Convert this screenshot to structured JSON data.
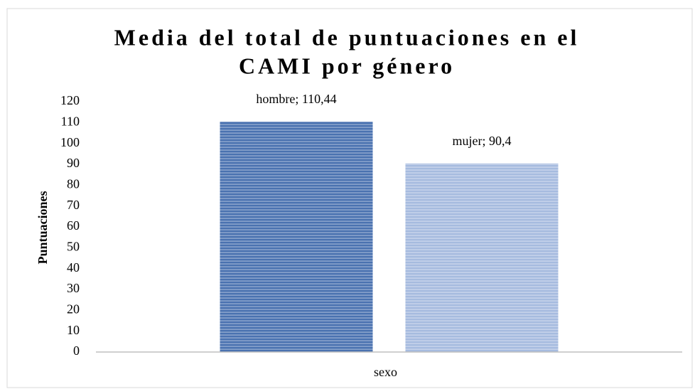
{
  "chart_data": {
    "type": "bar",
    "title": [
      "Media del total de puntuaciones en el",
      "CAMI por género"
    ],
    "y_label": "Puntuaciones",
    "x_label": "sexo",
    "categories": [
      "sexo"
    ],
    "series": [
      {
        "color": "#4a72b0",
        "values": [
          110.44
        ],
        "value_labels": [
          "hombre; 110,44"
        ]
      },
      {
        "color": "#a6bbdf",
        "values": [
          90.4
        ],
        "value_labels": [
          "mujer; 90,4"
        ]
      }
    ],
    "ylim": [
      0,
      120
    ],
    "yticks": [
      0,
      10,
      20,
      30,
      40,
      50,
      60,
      70,
      80,
      90,
      100,
      110,
      120
    ],
    "grid": false
  }
}
